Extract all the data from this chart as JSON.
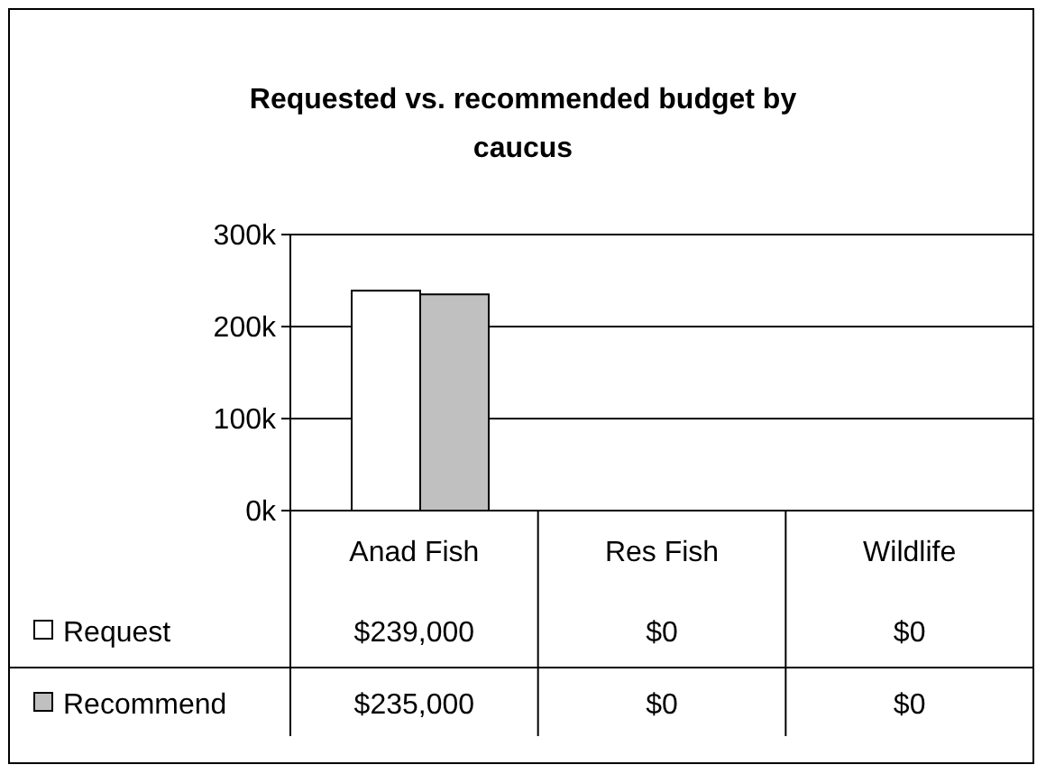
{
  "chart_data": {
    "type": "bar",
    "title": "Requested vs. recommended budget by caucus",
    "categories": [
      "Anad Fish",
      "Res Fish",
      "Wildlife"
    ],
    "series": [
      {
        "name": "Request",
        "color": "#ffffff",
        "values": [
          239000,
          0,
          0
        ],
        "value_labels": [
          "$239,000",
          "$0",
          "$0"
        ]
      },
      {
        "name": "Recommend",
        "color": "#c0c0c0",
        "values": [
          235000,
          0,
          0
        ],
        "value_labels": [
          "$235,000",
          "$0",
          "$0"
        ]
      }
    ],
    "ylim": [
      0,
      300000
    ],
    "yticks": [
      {
        "value": 0,
        "label": "0k"
      },
      {
        "value": 100000,
        "label": "100k"
      },
      {
        "value": 200000,
        "label": "200k"
      },
      {
        "value": 300000,
        "label": "300k"
      }
    ],
    "grid": "y",
    "legend": "bottom"
  }
}
